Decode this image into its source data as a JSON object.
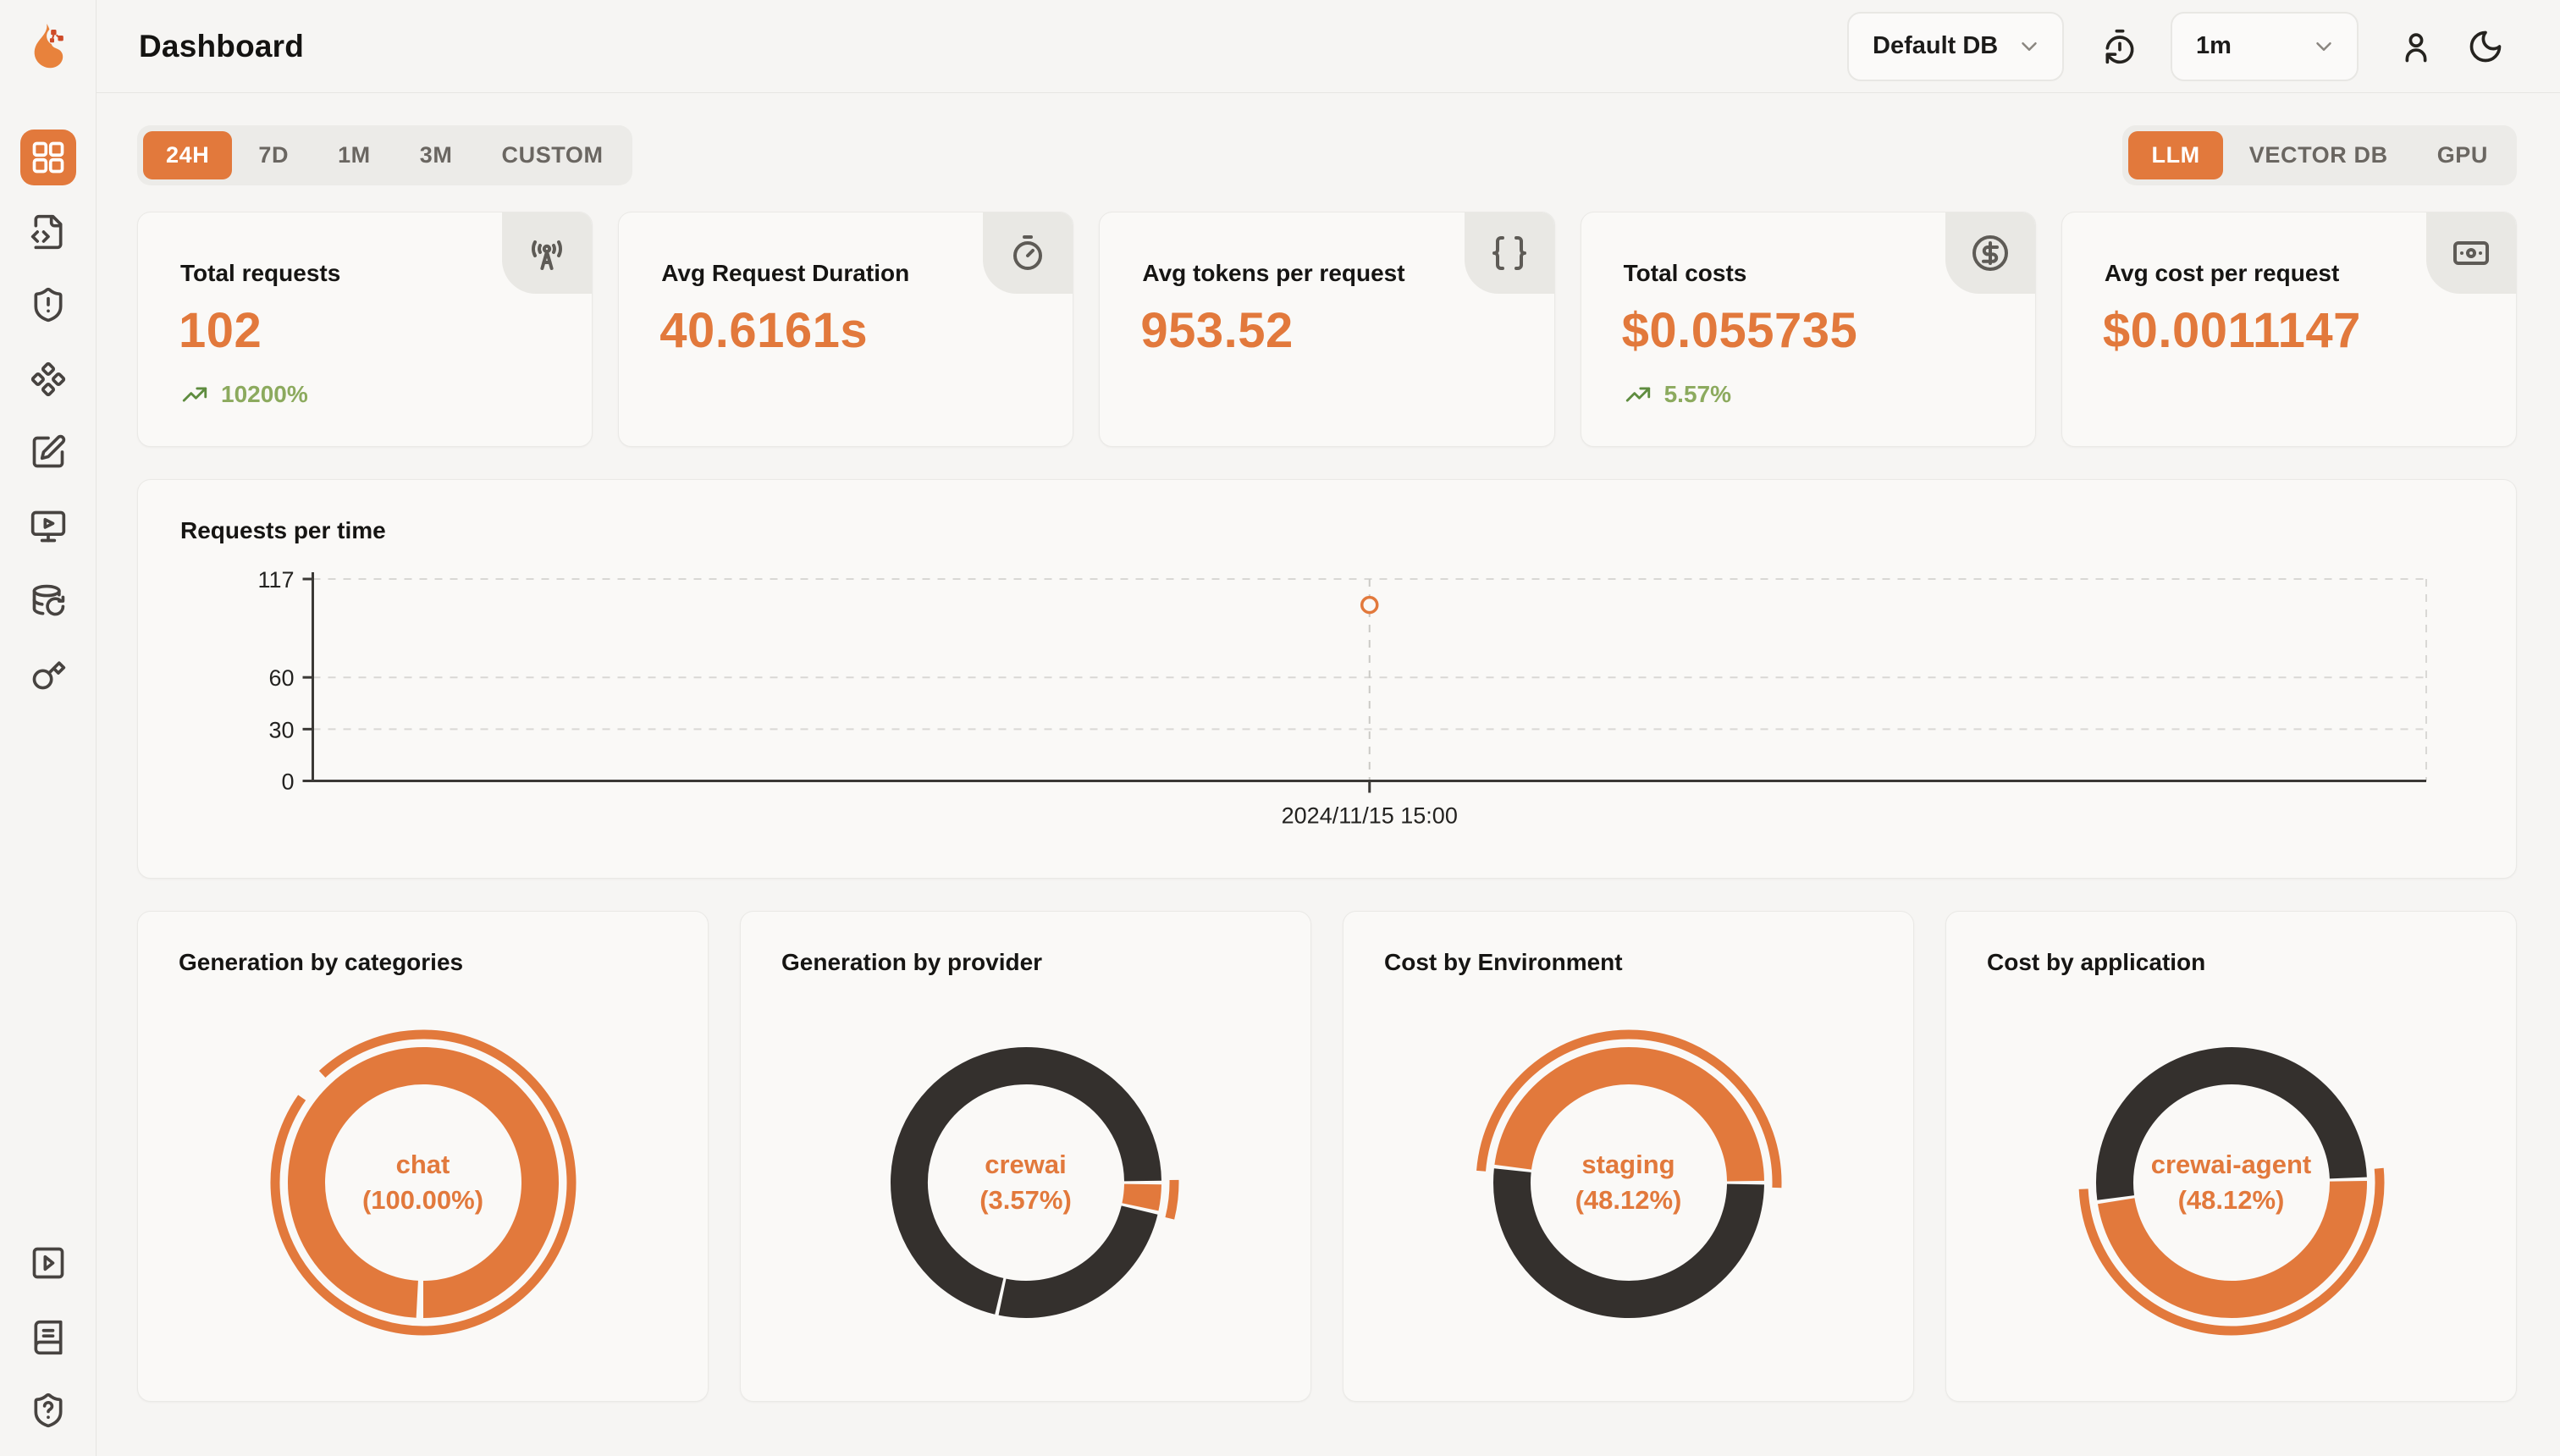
{
  "header": {
    "title": "Dashboard",
    "database_select": "Default DB",
    "interval_select": "1m",
    "icons": [
      "history-refresh",
      "user",
      "dark-mode-moon"
    ]
  },
  "sidebar": {
    "logo": "flame-logo",
    "top_items": [
      "dashboard",
      "request-traces",
      "exceptions",
      "components",
      "annotations",
      "playground",
      "database-history",
      "api-keys"
    ],
    "bottom_items": [
      "video-tutorials",
      "documentation",
      "help-support"
    ]
  },
  "filters": {
    "time_ranges": [
      "24H",
      "7D",
      "1M",
      "3M",
      "CUSTOM"
    ],
    "active_time_range": "24H",
    "categories": [
      "LLM",
      "VECTOR DB",
      "GPU"
    ],
    "active_category": "LLM"
  },
  "stats": [
    {
      "title": "Total requests",
      "value": "102",
      "trend": "10200%",
      "icon": "radio-tower"
    },
    {
      "title": "Avg Request Duration",
      "value": "40.6161s",
      "icon": "stopwatch"
    },
    {
      "title": "Avg tokens per request",
      "value": "953.52",
      "icon": "braces"
    },
    {
      "title": "Total costs",
      "value": "$0.055735",
      "trend": "5.57%",
      "icon": "dollar-circle"
    },
    {
      "title": "Avg cost per request",
      "value": "$0.0011147",
      "icon": "banknote"
    }
  ],
  "colors": {
    "accent": "#E2793C",
    "dark_slice": "#34302D",
    "trend_green": "#8CAA5E"
  },
  "chart_data": [
    {
      "type": "line",
      "title": "Requests per time",
      "xlabel": "",
      "ylabel": "",
      "ylim": [
        0,
        117
      ],
      "yticks": [
        0,
        30,
        60,
        117
      ],
      "grid": "dashed-horizontal",
      "x_labels": [
        "2024/11/15 15:00"
      ],
      "points": [
        {
          "x_label": "2024/11/15 15:00",
          "value": 102,
          "x_frac": 0.5
        }
      ],
      "point_style": "hollow-circle-orange"
    },
    {
      "type": "pie",
      "title": "Generation by categories",
      "center_label": [
        "chat",
        "(100.00%)"
      ],
      "slices": [
        {
          "name": "chat",
          "pct": 100.0,
          "color": "#E2793C"
        }
      ],
      "start_deg": 91.5,
      "outer_arc": {
        "start_deg": 227,
        "end_deg": 575
      }
    },
    {
      "type": "pie",
      "title": "Generation by provider",
      "center_label": [
        "crewai",
        "(3.57%)"
      ],
      "slices": [
        {
          "name": "crewai",
          "pct": 3.57,
          "color": "#E2793C"
        },
        {
          "name": "",
          "pct": 24.9,
          "color": "#34302D"
        },
        {
          "name": "",
          "pct": 71.53,
          "color": "#34302D"
        }
      ],
      "start_deg": 0,
      "outer_arc": {
        "start_deg": -1,
        "end_deg": 14
      }
    },
    {
      "type": "pie",
      "title": "Cost by Environment",
      "center_label": [
        "staging",
        "(48.12%)"
      ],
      "slices": [
        {
          "name": "staging",
          "pct": 48.12,
          "color": "#E2793C"
        },
        {
          "name": "",
          "pct": 51.88,
          "color": "#34302D"
        }
      ],
      "start_deg": 186.8,
      "outer_arc": {
        "start_deg": 184.5,
        "end_deg": 362
      }
    },
    {
      "type": "pie",
      "title": "Cost by application",
      "center_label": [
        "crewai-agent",
        "(48.12%)"
      ],
      "slices": [
        {
          "name": "crewai-agent",
          "pct": 48.12,
          "color": "#E2793C"
        },
        {
          "name": "",
          "pct": 51.88,
          "color": "#34302D"
        }
      ],
      "start_deg": 358.5,
      "outer_arc": {
        "start_deg": -5.5,
        "end_deg": 177.5
      }
    }
  ]
}
